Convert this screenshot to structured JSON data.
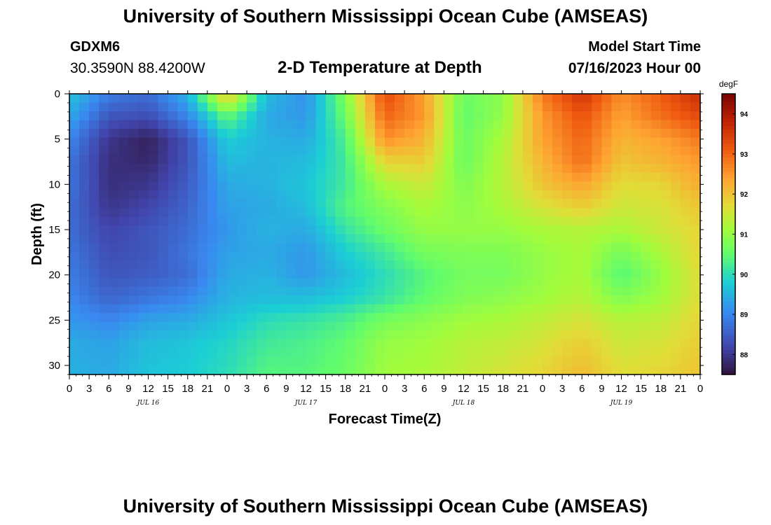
{
  "header": {
    "title": "University of Southern Mississippi Ocean Cube (AMSEAS)",
    "station_id": "GDXM6",
    "station_coords": "30.3590N  88.4200W",
    "plot_title": "2-D Temperature at Depth",
    "model_start_label": "Model Start Time",
    "model_start_value": "07/16/2023 Hour 00"
  },
  "footer": {
    "title": "University of Southern Mississippi Ocean Cube (AMSEAS)"
  },
  "chart_data": {
    "type": "heatmap",
    "title": "2-D Temperature at Depth",
    "xlabel": "Forecast Time(Z)",
    "ylabel": "Depth (ft)",
    "x_tick_labels": [
      "0",
      "3",
      "6",
      "9",
      "12",
      "15",
      "18",
      "21",
      "0",
      "3",
      "6",
      "9",
      "12",
      "15",
      "18",
      "21",
      "0",
      "3",
      "6",
      "9",
      "12",
      "15",
      "18",
      "21",
      "0",
      "3",
      "6",
      "9",
      "12",
      "15",
      "18",
      "21",
      "0"
    ],
    "date_labels": [
      "JUL 16",
      "JUL 17",
      "JUL 18",
      "JUL 19"
    ],
    "xlim": [
      0,
      96
    ],
    "ylim": [
      31,
      0
    ],
    "y_ticks": [
      0,
      5,
      10,
      15,
      20,
      25,
      30
    ],
    "colorbar": {
      "unit": "degF",
      "ticks": [
        88,
        89,
        90,
        91,
        92,
        93,
        94
      ],
      "range": [
        87.5,
        94.5
      ]
    },
    "depths_ft": [
      0,
      2.5,
      5,
      7.5,
      10,
      12.5,
      15,
      17.5,
      20,
      22.5,
      25,
      27.5,
      31
    ],
    "times_h": [
      0,
      6,
      12,
      18,
      24,
      30,
      36,
      42,
      48,
      54,
      60,
      66,
      72,
      78,
      84,
      90,
      96
    ],
    "temperature_degF": [
      [
        89.7,
        88.9,
        88.7,
        89.5,
        92.1,
        89.6,
        89.1,
        90.8,
        93.3,
        92.4,
        90.6,
        90.9,
        92.8,
        93.6,
        92.6,
        93.1,
        93.7
      ],
      [
        89.4,
        88.4,
        88.3,
        89.0,
        90.5,
        89.4,
        89.2,
        90.6,
        93.0,
        92.5,
        90.5,
        91.0,
        92.5,
        93.2,
        92.4,
        92.9,
        93.3
      ],
      [
        89.0,
        88.0,
        87.7,
        88.4,
        89.8,
        89.5,
        89.4,
        90.3,
        92.6,
        92.2,
        90.6,
        91.2,
        92.4,
        93.0,
        92.2,
        92.4,
        92.8
      ],
      [
        88.8,
        87.9,
        87.8,
        88.4,
        89.6,
        89.5,
        89.6,
        90.2,
        91.8,
        91.9,
        90.6,
        91.3,
        92.2,
        92.9,
        92.0,
        92.2,
        92.5
      ],
      [
        88.8,
        87.9,
        88.0,
        88.5,
        89.4,
        89.5,
        89.7,
        90.2,
        91.2,
        91.5,
        90.8,
        91.3,
        92.0,
        92.4,
        91.7,
        91.8,
        92.3
      ],
      [
        88.7,
        88.0,
        88.2,
        88.6,
        89.3,
        89.4,
        89.6,
        90.4,
        90.8,
        91.2,
        90.9,
        91.2,
        91.6,
        91.9,
        91.5,
        91.6,
        92.0
      ],
      [
        88.7,
        88.2,
        88.4,
        88.7,
        89.2,
        89.5,
        89.4,
        90.1,
        90.6,
        91.0,
        91.0,
        91.0,
        91.2,
        91.3,
        91.2,
        91.5,
        91.8
      ],
      [
        88.8,
        88.3,
        88.4,
        88.8,
        89.3,
        89.4,
        89.2,
        89.8,
        90.2,
        90.7,
        90.8,
        90.8,
        91.0,
        91.2,
        90.7,
        91.2,
        91.8
      ],
      [
        88.9,
        88.4,
        88.5,
        88.7,
        89.4,
        89.5,
        89.2,
        89.6,
        90.0,
        90.4,
        90.7,
        90.7,
        91.0,
        91.2,
        90.4,
        91.0,
        91.7
      ],
      [
        89.0,
        88.6,
        88.8,
        89.0,
        89.5,
        89.6,
        89.6,
        89.8,
        90.1,
        90.5,
        90.8,
        90.9,
        91.1,
        91.3,
        90.8,
        91.1,
        91.7
      ],
      [
        89.2,
        89.0,
        89.3,
        89.4,
        89.7,
        90.0,
        90.1,
        90.3,
        90.7,
        90.9,
        91.1,
        91.2,
        91.4,
        91.6,
        91.3,
        91.4,
        91.8
      ],
      [
        89.4,
        89.3,
        89.6,
        89.7,
        89.9,
        90.2,
        90.3,
        90.5,
        91.0,
        91.1,
        91.3,
        91.4,
        91.6,
        91.9,
        91.5,
        91.6,
        91.9
      ],
      [
        89.5,
        89.4,
        89.7,
        89.8,
        90.0,
        90.4,
        90.4,
        90.6,
        91.1,
        91.2,
        91.4,
        91.6,
        91.8,
        92.1,
        91.7,
        91.8,
        92.0
      ]
    ]
  }
}
